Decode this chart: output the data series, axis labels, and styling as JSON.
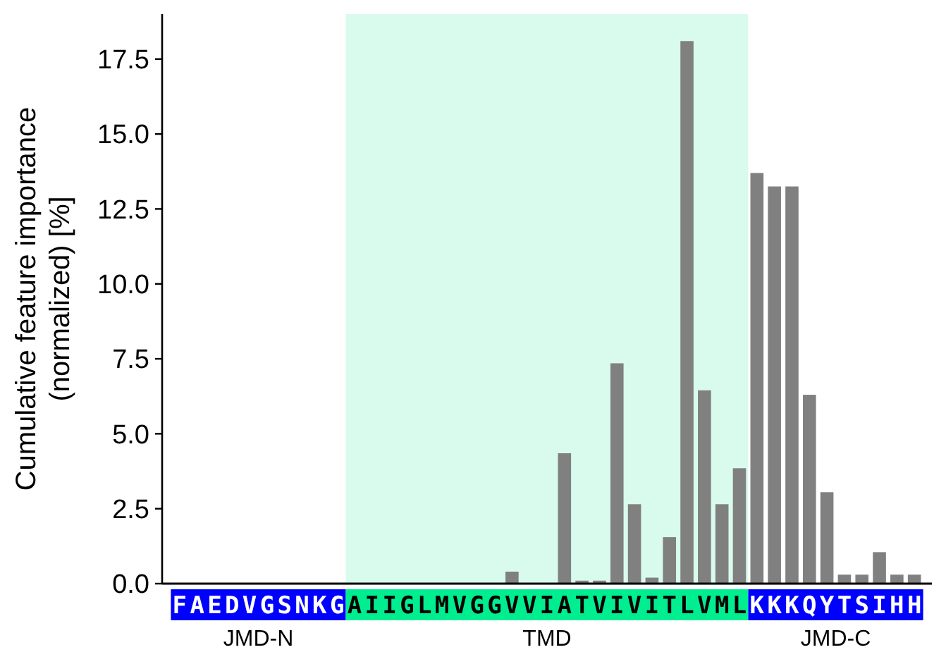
{
  "chart_data": {
    "type": "bar",
    "ylabel": "Cumulative feature importance\n(normalized) [%]",
    "categories": [
      "F",
      "A",
      "E",
      "D",
      "V",
      "G",
      "S",
      "N",
      "K",
      "G",
      "A",
      "I",
      "I",
      "G",
      "L",
      "M",
      "V",
      "G",
      "G",
      "V",
      "V",
      "I",
      "A",
      "T",
      "V",
      "I",
      "V",
      "I",
      "T",
      "L",
      "V",
      "M",
      "L",
      "K",
      "K",
      "K",
      "Q",
      "Y",
      "T",
      "S",
      "I",
      "H",
      "H"
    ],
    "values": [
      0,
      0,
      0,
      0,
      0,
      0,
      0,
      0,
      0,
      0,
      0,
      0,
      0,
      0,
      0,
      0,
      0,
      0,
      0,
      0.4,
      0,
      0,
      4.35,
      0.1,
      0.1,
      7.35,
      2.65,
      0.2,
      1.55,
      18.1,
      6.45,
      2.65,
      3.85,
      13.7,
      13.25,
      13.25,
      6.3,
      3.05,
      0.3,
      0.3,
      1.05,
      0.3,
      0.3
    ],
    "color": "#808080",
    "ylim": [
      0,
      19
    ],
    "yticks": [
      {
        "value": 0,
        "label": "0.0"
      },
      2.5,
      {
        "value": 5,
        "label": "5.0"
      },
      7.5,
      {
        "value": 10,
        "label": "10.0"
      },
      12.5,
      {
        "value": 15,
        "label": "15.0"
      },
      17.5
    ],
    "annotations": [
      "JMD-N",
      "TMD",
      "JMD-C"
    ]
  }
}
